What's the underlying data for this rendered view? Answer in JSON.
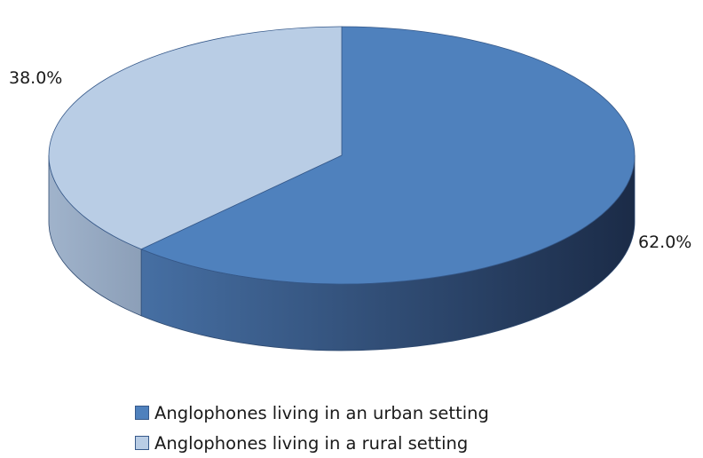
{
  "chart_data": {
    "type": "pie",
    "style": "3d",
    "categories": [
      "Anglophones living in an urban setting",
      "Anglophones living in a rural setting"
    ],
    "values": [
      62.0,
      38.0
    ],
    "data_labels": [
      "62.0%",
      "38.0%"
    ],
    "colors": [
      "#4f81bd",
      "#b9cde5"
    ],
    "legend_position": "bottom",
    "title": ""
  }
}
